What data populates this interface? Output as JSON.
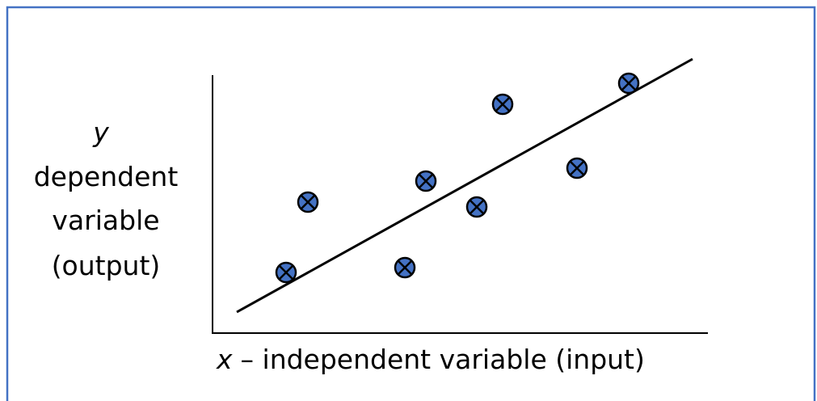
{
  "y_axis": {
    "symbol": "y",
    "label_lines": [
      "dependent",
      "variable",
      "(output)"
    ]
  },
  "x_axis": {
    "symbol": "x",
    "label": "– independent variable (input)"
  }
}
